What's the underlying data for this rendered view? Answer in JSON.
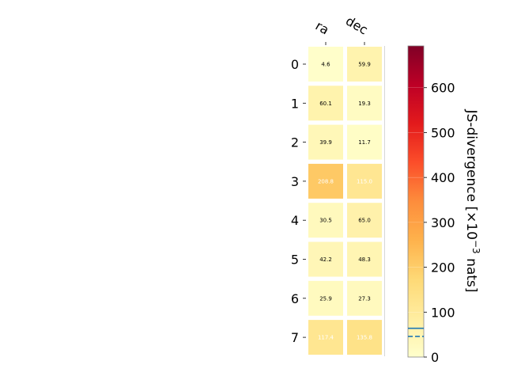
{
  "chart_data": {
    "type": "heatmap",
    "columns": [
      "ra",
      "dec"
    ],
    "rows": [
      "0",
      "1",
      "2",
      "3",
      "4",
      "5",
      "6",
      "7"
    ],
    "values": [
      [
        4.6,
        59.9
      ],
      [
        60.1,
        19.3
      ],
      [
        39.9,
        11.7
      ],
      [
        208.8,
        115.0
      ],
      [
        30.5,
        65.0
      ],
      [
        42.2,
        48.3
      ],
      [
        25.9,
        27.3
      ],
      [
        117.4,
        135.8
      ]
    ],
    "cell_labels": [
      [
        "4.6",
        "59.9"
      ],
      [
        "60.1",
        "19.3"
      ],
      [
        "39.9",
        "11.7"
      ],
      [
        "208.8",
        "115.0"
      ],
      [
        "30.5",
        "65.0"
      ],
      [
        "42.2",
        "48.3"
      ],
      [
        "25.9",
        "27.3"
      ],
      [
        "117.4",
        "135.8"
      ]
    ],
    "colorbar": {
      "label": "JS-divergence [×10⁻³ nats]",
      "label_main": "JS-divergence [×10",
      "label_sup": "−3",
      "label_end": " nats]",
      "range": [
        0,
        693
      ],
      "ticks": [
        "0",
        "100",
        "200",
        "300",
        "400",
        "500",
        "600"
      ],
      "tick_values": [
        0,
        100,
        200,
        300,
        400,
        500,
        600
      ],
      "colormap": "YlOrRd",
      "reference_lines": [
        {
          "value": 64,
          "style": "solid",
          "color": "#1f77b4"
        },
        {
          "value": 46,
          "style": "dashed",
          "color": "#1f77b4"
        }
      ]
    },
    "colormap_stops": [
      "#ffffcc",
      "#ffeda0",
      "#fed976",
      "#feb24c",
      "#fd8d3c",
      "#fc4e2a",
      "#e31a1c",
      "#bd0026",
      "#800026"
    ]
  }
}
